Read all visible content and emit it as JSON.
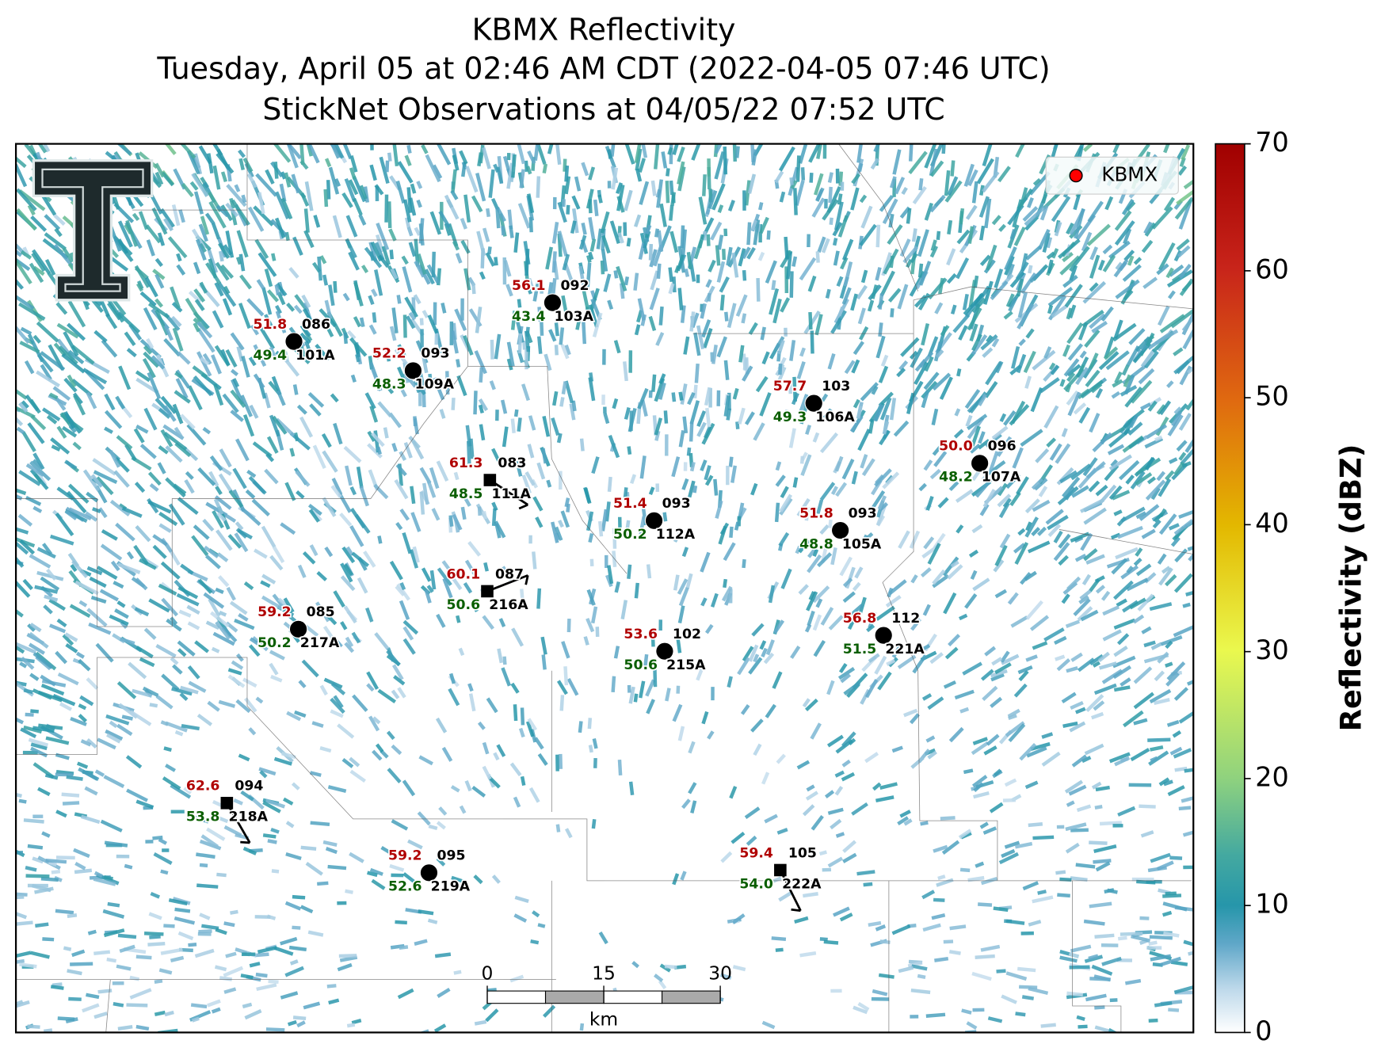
{
  "title": [
    "KBMX Reflectivity",
    "Tuesday, April 05 at 02:46 AM CDT (2022-04-05 07:46 UTC)",
    "StickNet Observations at 04/05/22 07:52 UTC"
  ],
  "legend": {
    "label": "KBMX",
    "color": "#ff0000",
    "corner": "upper right"
  },
  "colorbar": {
    "label": "Reflectivity (dBZ)",
    "lim": [
      0,
      70
    ],
    "ticks": [
      0,
      10,
      20,
      30,
      40,
      50,
      60,
      70
    ]
  },
  "scale_bar": {
    "ticks": [
      0,
      15,
      30
    ],
    "unit": "km"
  },
  "stations": [
    {
      "id": "101A",
      "code": "086",
      "temperature": "51.8",
      "dewpoint": "49.4",
      "marker": "circle"
    },
    {
      "id": "109A",
      "code": "093",
      "temperature": "52.2",
      "dewpoint": "48.3",
      "marker": "circle"
    },
    {
      "id": "103A",
      "code": "092",
      "temperature": "56.1",
      "dewpoint": "43.4",
      "marker": "circle"
    },
    {
      "id": "106A",
      "code": "103",
      "temperature": "57.7",
      "dewpoint": "49.3",
      "marker": "circle"
    },
    {
      "id": "107A",
      "code": "096",
      "temperature": "50.0",
      "dewpoint": "48.2",
      "marker": "circle"
    },
    {
      "id": "111A",
      "code": "083",
      "temperature": "61.3",
      "dewpoint": "48.5",
      "marker": "square"
    },
    {
      "id": "112A",
      "code": "093",
      "temperature": "51.4",
      "dewpoint": "50.2",
      "marker": "circle"
    },
    {
      "id": "105A",
      "code": "093",
      "temperature": "51.8",
      "dewpoint": "48.8",
      "marker": "circle"
    },
    {
      "id": "216A",
      "code": "087",
      "temperature": "60.1",
      "dewpoint": "50.6",
      "marker": "square"
    },
    {
      "id": "217A",
      "code": "085",
      "temperature": "59.2",
      "dewpoint": "50.2",
      "marker": "circle"
    },
    {
      "id": "215A",
      "code": "102",
      "temperature": "53.6",
      "dewpoint": "50.6",
      "marker": "circle"
    },
    {
      "id": "221A",
      "code": "112",
      "temperature": "56.8",
      "dewpoint": "51.5",
      "marker": "circle"
    },
    {
      "id": "218A",
      "code": "094",
      "temperature": "62.6",
      "dewpoint": "53.8",
      "marker": "square"
    },
    {
      "id": "219A",
      "code": "095",
      "temperature": "59.2",
      "dewpoint": "52.6",
      "marker": "circle"
    },
    {
      "id": "222A",
      "code": "105",
      "temperature": "59.4",
      "dewpoint": "54.0",
      "marker": "square"
    }
  ]
}
